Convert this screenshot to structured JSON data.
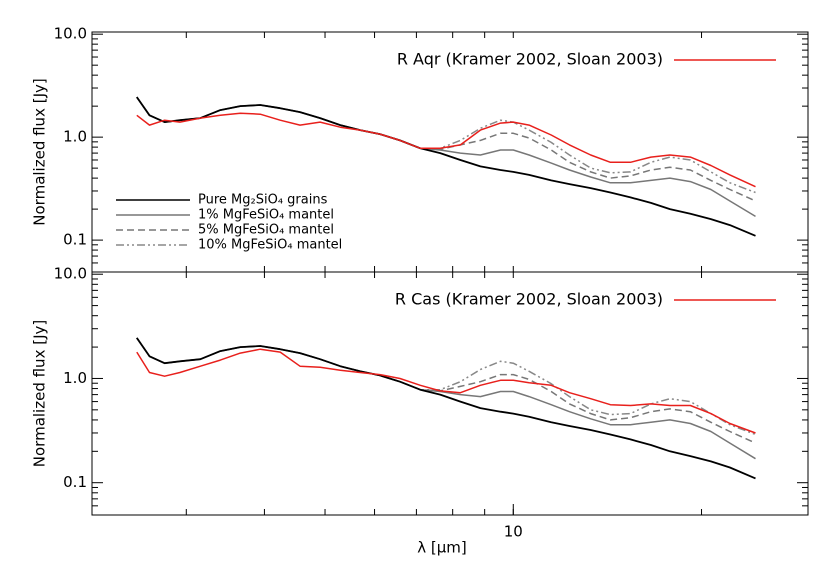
{
  "chart_data": [
    {
      "type": "line",
      "ylabel": "Normalized flux [Jy]",
      "log_x": true,
      "log_y": true,
      "xlim": [
        2.12,
        29.6
      ],
      "ylim": [
        0.049,
        10.5
      ],
      "xtick_marks": [
        3,
        4,
        5,
        6,
        7,
        8,
        9,
        10,
        20
      ],
      "yticks": [
        {
          "value": 10,
          "label": "10.0"
        },
        {
          "value": 1,
          "label": "1.0"
        },
        0.1
      ],
      "ytick_marks": [
        0.06,
        0.07,
        0.08,
        0.09,
        0.2,
        0.3,
        0.4,
        0.5,
        0.6,
        0.7,
        0.8,
        0.9,
        2,
        3,
        4,
        5,
        6,
        7,
        8,
        9
      ],
      "x": [
        2.5,
        2.62,
        2.77,
        2.93,
        3.16,
        3.4,
        3.66,
        3.94,
        4.24,
        4.56,
        4.91,
        5.29,
        5.69,
        6.12,
        6.59,
        7.1,
        7.64,
        8.23,
        8.86,
        9.54,
        10,
        10.6,
        11.5,
        12.3,
        13.3,
        14.3,
        15.4,
        16.6,
        17.8,
        19.2,
        20.7,
        22.2,
        24.4
      ],
      "series": [
        {
          "name": "R Aqr (Kramer 2002, Sloan 2003)",
          "color": "#e8201c",
          "dash": "solid",
          "legend": "right",
          "values": [
            1.63,
            1.31,
            1.46,
            1.4,
            1.53,
            1.63,
            1.71,
            1.67,
            1.46,
            1.31,
            1.4,
            1.25,
            1.17,
            1.07,
            0.93,
            0.78,
            0.78,
            0.84,
            1.17,
            1.37,
            1.4,
            1.31,
            1.05,
            0.84,
            0.67,
            0.57,
            0.57,
            0.64,
            0.67,
            0.64,
            0.53,
            0.43,
            0.33
          ]
        },
        {
          "name": "Pure Mg₂SiO₄ grains",
          "color": "#000000",
          "dash": "solid",
          "legend": "left",
          "values": [
            2.45,
            1.63,
            1.4,
            1.46,
            1.53,
            1.83,
            2.0,
            2.05,
            1.91,
            1.75,
            1.53,
            1.31,
            1.17,
            1.07,
            0.93,
            0.78,
            0.7,
            0.6,
            0.52,
            0.48,
            0.46,
            0.43,
            0.38,
            0.35,
            0.32,
            0.29,
            0.26,
            0.23,
            0.2,
            0.18,
            0.16,
            0.14,
            0.11
          ]
        },
        {
          "name": "1% MgFeSiO₄ mantel",
          "color": "#777777",
          "dash": "solid",
          "legend": "left",
          "values": [
            2.45,
            1.63,
            1.4,
            1.46,
            1.53,
            1.83,
            2.0,
            2.05,
            1.91,
            1.75,
            1.53,
            1.31,
            1.17,
            1.07,
            0.93,
            0.78,
            0.75,
            0.7,
            0.67,
            0.75,
            0.75,
            0.67,
            0.56,
            0.48,
            0.41,
            0.36,
            0.36,
            0.38,
            0.4,
            0.37,
            0.31,
            0.24,
            0.17
          ]
        },
        {
          "name": "5% MgFeSiO₄ mantel",
          "color": "#777777",
          "dash": "dashed",
          "legend": "left",
          "values": [
            2.45,
            1.63,
            1.4,
            1.46,
            1.53,
            1.83,
            2.0,
            2.05,
            1.91,
            1.75,
            1.53,
            1.31,
            1.17,
            1.07,
            0.93,
            0.78,
            0.76,
            0.84,
            0.93,
            1.09,
            1.09,
            0.98,
            0.75,
            0.57,
            0.46,
            0.4,
            0.42,
            0.48,
            0.51,
            0.48,
            0.38,
            0.31,
            0.24
          ]
        },
        {
          "name": "10% MgFeSiO₄ mantel",
          "color": "#888888",
          "dash": "dashdotdot",
          "legend": "left",
          "values": [
            2.45,
            1.63,
            1.4,
            1.46,
            1.53,
            1.83,
            2.0,
            2.05,
            1.91,
            1.75,
            1.53,
            1.31,
            1.17,
            1.07,
            0.93,
            0.78,
            0.78,
            0.93,
            1.22,
            1.46,
            1.4,
            1.17,
            0.89,
            0.67,
            0.5,
            0.45,
            0.46,
            0.57,
            0.64,
            0.6,
            0.46,
            0.36,
            0.29
          ]
        }
      ]
    },
    {
      "type": "line",
      "ylabel": "Normalized flux [Jy]",
      "xlabel": "λ [μm]",
      "log_x": true,
      "log_y": true,
      "xlim": [
        2.12,
        29.6
      ],
      "ylim": [
        0.049,
        10.5
      ],
      "xticks": [
        10
      ],
      "xtick_marks": [
        3,
        4,
        5,
        6,
        7,
        8,
        9,
        10,
        20
      ],
      "yticks": [
        {
          "value": 10,
          "label": "10.0"
        },
        {
          "value": 1,
          "label": "1.0"
        },
        0.1
      ],
      "ytick_marks": [
        0.06,
        0.07,
        0.08,
        0.09,
        0.2,
        0.3,
        0.4,
        0.5,
        0.6,
        0.7,
        0.8,
        0.9,
        2,
        3,
        4,
        5,
        6,
        7,
        8,
        9
      ],
      "x": [
        2.5,
        2.62,
        2.77,
        2.93,
        3.16,
        3.4,
        3.66,
        3.94,
        4.24,
        4.56,
        4.91,
        5.29,
        5.69,
        6.12,
        6.59,
        7.1,
        7.64,
        8.23,
        8.86,
        9.54,
        10,
        10.6,
        11.5,
        12.3,
        13.3,
        14.3,
        15.4,
        16.6,
        17.8,
        19.2,
        20.7,
        22.2,
        24.4
      ],
      "series": [
        {
          "name": "R Cas (Kramer 2002, Sloan 2003)",
          "color": "#e8201c",
          "dash": "solid",
          "legend": "right",
          "values": [
            1.79,
            1.14,
            1.05,
            1.14,
            1.31,
            1.5,
            1.75,
            1.91,
            1.79,
            1.31,
            1.28,
            1.2,
            1.14,
            1.09,
            1.0,
            0.86,
            0.76,
            0.73,
            0.86,
            0.96,
            0.96,
            0.91,
            0.86,
            0.73,
            0.64,
            0.56,
            0.55,
            0.57,
            0.55,
            0.55,
            0.46,
            0.37,
            0.3
          ]
        },
        {
          "color": "#000000",
          "dash": "solid",
          "values": [
            2.45,
            1.63,
            1.4,
            1.46,
            1.53,
            1.83,
            2.0,
            2.05,
            1.91,
            1.75,
            1.53,
            1.31,
            1.17,
            1.07,
            0.93,
            0.78,
            0.7,
            0.6,
            0.52,
            0.48,
            0.46,
            0.43,
            0.38,
            0.35,
            0.32,
            0.29,
            0.26,
            0.23,
            0.2,
            0.18,
            0.16,
            0.14,
            0.11
          ]
        },
        {
          "color": "#777777",
          "dash": "solid",
          "values": [
            2.45,
            1.63,
            1.4,
            1.46,
            1.53,
            1.83,
            2.0,
            2.05,
            1.91,
            1.75,
            1.53,
            1.31,
            1.17,
            1.07,
            0.93,
            0.78,
            0.75,
            0.7,
            0.67,
            0.75,
            0.75,
            0.67,
            0.56,
            0.48,
            0.41,
            0.36,
            0.36,
            0.38,
            0.4,
            0.37,
            0.31,
            0.24,
            0.17
          ]
        },
        {
          "color": "#777777",
          "dash": "dashed",
          "values": [
            2.45,
            1.63,
            1.4,
            1.46,
            1.53,
            1.83,
            2.0,
            2.05,
            1.91,
            1.75,
            1.53,
            1.31,
            1.17,
            1.07,
            0.93,
            0.78,
            0.76,
            0.84,
            0.93,
            1.09,
            1.09,
            0.98,
            0.75,
            0.57,
            0.46,
            0.4,
            0.42,
            0.48,
            0.51,
            0.48,
            0.38,
            0.31,
            0.24
          ]
        },
        {
          "color": "#888888",
          "dash": "dashdotdot",
          "values": [
            2.45,
            1.63,
            1.4,
            1.46,
            1.53,
            1.83,
            2.0,
            2.05,
            1.91,
            1.75,
            1.53,
            1.31,
            1.17,
            1.07,
            0.93,
            0.78,
            0.78,
            0.93,
            1.22,
            1.46,
            1.4,
            1.17,
            0.89,
            0.67,
            0.5,
            0.45,
            0.46,
            0.57,
            0.64,
            0.6,
            0.46,
            0.36,
            0.29
          ]
        }
      ]
    }
  ]
}
